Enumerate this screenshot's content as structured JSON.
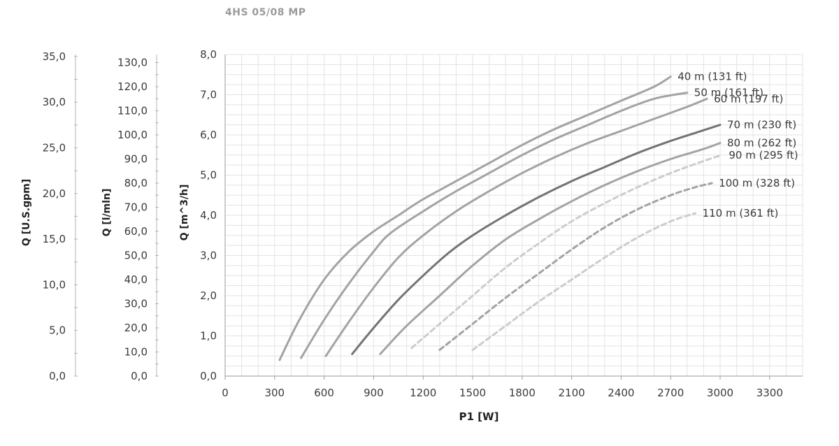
{
  "chart_data": {
    "type": "line",
    "title": "4HS 05/08 MP",
    "xlabel": "P1 [W]",
    "ylabel": "Q [m^3/h]",
    "ylabel_lmin": "Q [l/mln]",
    "ylabel_usgpm": "Q [U.S.gpm]",
    "xlim": [
      0,
      3500
    ],
    "ylim": [
      0,
      8
    ],
    "ylim_lmin": [
      0,
      133.333
    ],
    "ylim_usgpm": [
      0,
      35.22
    ],
    "x_ticks": [
      "0",
      "300",
      "600",
      "900",
      "1200",
      "1500",
      "1800",
      "2100",
      "2400",
      "2700",
      "3000",
      "3300"
    ],
    "y_ticks": [
      "0,0",
      "1,0",
      "2,0",
      "3,0",
      "4,0",
      "5,0",
      "6,0",
      "7,0",
      "8,0"
    ],
    "y_ticks_lmin": [
      "0,0",
      "10,0",
      "20,0",
      "30,0",
      "40,0",
      "50,0",
      "60,0",
      "70,0",
      "80,0",
      "90,0",
      "100,0",
      "110,0",
      "120,0",
      "130,0"
    ],
    "y_ticks_usgpm": [
      "0,0",
      "5,0",
      "10,0",
      "15,0",
      "20,0",
      "25,0",
      "30,0",
      "35,0"
    ],
    "grid": true,
    "series": [
      {
        "name": "40 m (131 ft)",
        "color": "#a3a3a3",
        "style": "solid",
        "x": [
          330,
          450,
          600,
          750,
          900,
          1050,
          1200,
          1400,
          1600,
          1800,
          2000,
          2200,
          2400,
          2600,
          2700
        ],
        "y": [
          0.4,
          1.4,
          2.4,
          3.1,
          3.6,
          4.0,
          4.4,
          4.85,
          5.3,
          5.75,
          6.15,
          6.5,
          6.85,
          7.2,
          7.45
        ]
      },
      {
        "name": "50 m (161 ft)",
        "color": "#a3a3a3",
        "style": "solid",
        "x": [
          460,
          600,
          750,
          900,
          1000,
          1200,
          1400,
          1600,
          1800,
          2000,
          2200,
          2400,
          2600,
          2800
        ],
        "y": [
          0.45,
          1.4,
          2.3,
          3.1,
          3.55,
          4.1,
          4.6,
          5.05,
          5.5,
          5.9,
          6.25,
          6.6,
          6.9,
          7.05
        ]
      },
      {
        "name": "60 m (197 ft)",
        "color": "#a3a3a3",
        "style": "solid",
        "x": [
          610,
          750,
          900,
          1050,
          1200,
          1400,
          1600,
          1800,
          2000,
          2200,
          2400,
          2600,
          2800,
          2920
        ],
        "y": [
          0.5,
          1.35,
          2.2,
          2.95,
          3.5,
          4.1,
          4.6,
          5.05,
          5.45,
          5.8,
          6.1,
          6.4,
          6.7,
          6.9
        ]
      },
      {
        "name": "70 m (230 ft)",
        "color": "#737373",
        "style": "solid",
        "x": [
          770,
          900,
          1050,
          1200,
          1350,
          1500,
          1700,
          1900,
          2100,
          2300,
          2500,
          2700,
          2850,
          3000
        ],
        "y": [
          0.55,
          1.2,
          1.9,
          2.5,
          3.05,
          3.5,
          4.0,
          4.45,
          4.85,
          5.2,
          5.55,
          5.85,
          6.05,
          6.25
        ]
      },
      {
        "name": "80 m (262 ft)",
        "color": "#a3a3a3",
        "style": "solid",
        "x": [
          940,
          1100,
          1300,
          1500,
          1700,
          1900,
          2100,
          2300,
          2500,
          2700,
          2900,
          3000
        ],
        "y": [
          0.55,
          1.25,
          2.0,
          2.75,
          3.4,
          3.9,
          4.35,
          4.75,
          5.1,
          5.4,
          5.65,
          5.8
        ]
      },
      {
        "name": "90 m (295 ft)",
        "color": "#cccccc",
        "style": "dashed",
        "x": [
          1130,
          1300,
          1500,
          1700,
          1900,
          2100,
          2300,
          2500,
          2700,
          2900,
          3010
        ],
        "y": [
          0.7,
          1.3,
          2.0,
          2.7,
          3.3,
          3.85,
          4.3,
          4.7,
          5.05,
          5.35,
          5.5
        ]
      },
      {
        "name": "100 m (328 ft)",
        "color": "#a3a3a3",
        "style": "dashed",
        "x": [
          1300,
          1500,
          1700,
          1900,
          2100,
          2300,
          2500,
          2700,
          2850,
          2950
        ],
        "y": [
          0.65,
          1.3,
          1.95,
          2.55,
          3.15,
          3.7,
          4.15,
          4.5,
          4.7,
          4.8
        ]
      },
      {
        "name": "110 m (361 ft)",
        "color": "#cccccc",
        "style": "dashed",
        "x": [
          1500,
          1700,
          1900,
          2100,
          2300,
          2500,
          2700,
          2850
        ],
        "y": [
          0.65,
          1.25,
          1.85,
          2.4,
          2.95,
          3.45,
          3.85,
          4.05
        ]
      }
    ]
  }
}
